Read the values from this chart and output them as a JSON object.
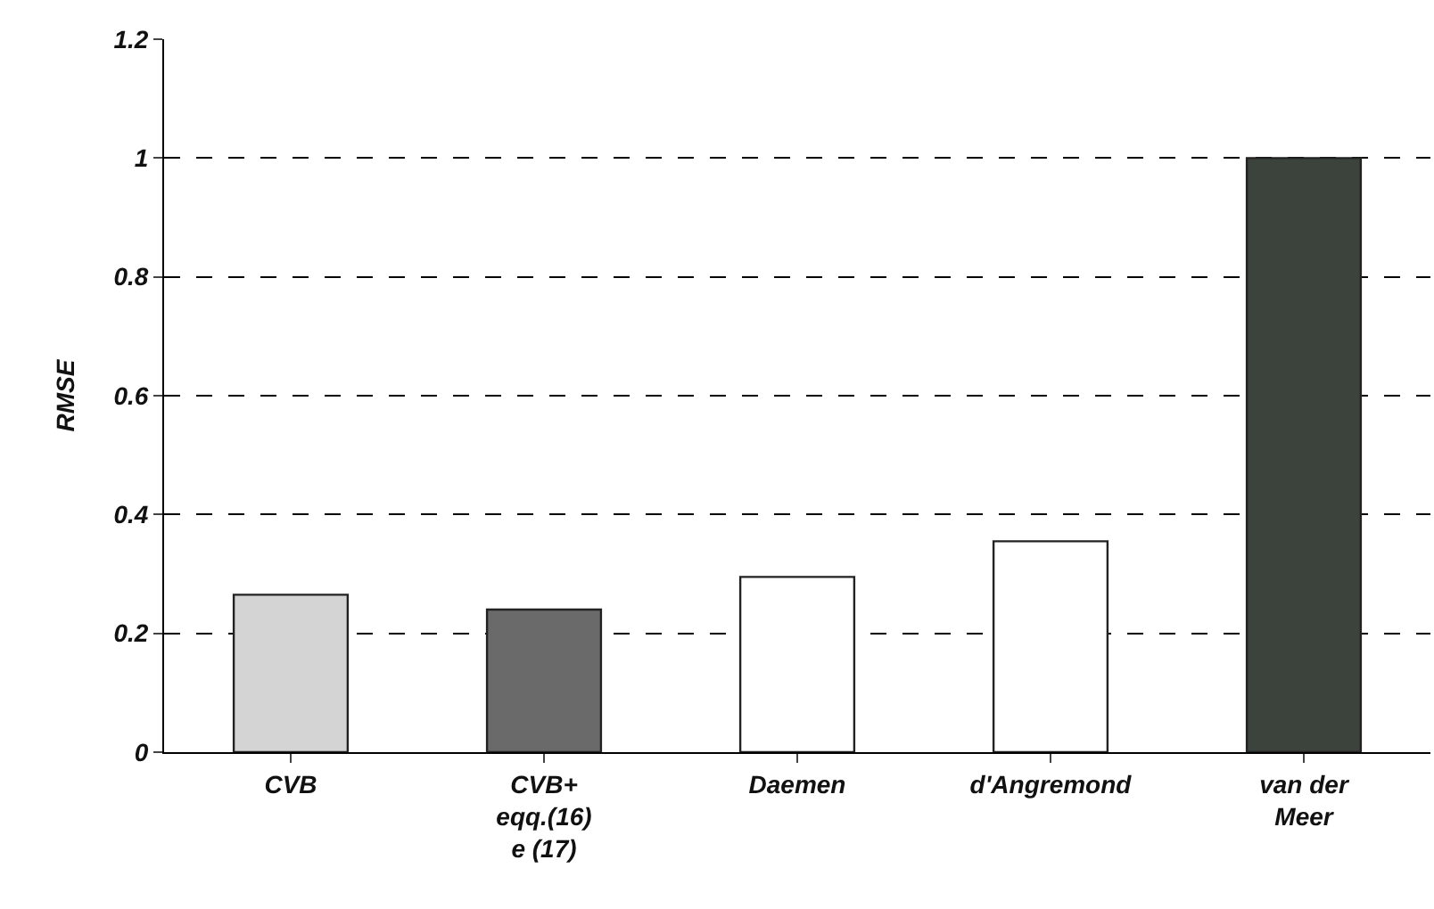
{
  "chart_data": {
    "type": "bar",
    "ylabel": "RMSE",
    "categories": [
      "CVB",
      "CVB+ eqq.(16) e (17)",
      "Daemen",
      "d'Angremond",
      "van der Meer"
    ],
    "values": [
      0.265,
      0.24,
      0.295,
      0.355,
      1.0
    ],
    "colors": [
      "#d4d4d4",
      "#6a6a6a",
      "#ffffff",
      "#ffffff",
      "#3c423c"
    ],
    "ylim": [
      0,
      1.2
    ],
    "yticks": [
      0,
      0.2,
      0.4,
      0.6,
      0.8,
      1,
      1.2
    ],
    "grid": "y"
  }
}
